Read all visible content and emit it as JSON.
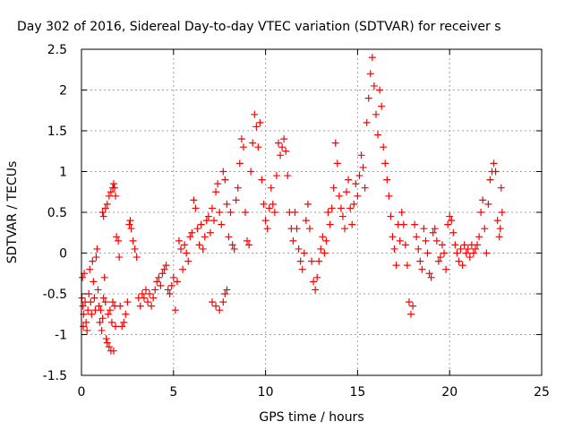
{
  "chart_data": {
    "type": "scatter",
    "title": "Day 302 of 2016, Sidereal Day-to-day VTEC variation (SDTVAR) for receiver s",
    "xlabel": "GPS time / hours",
    "ylabel": "SDTVAR / TECUs",
    "xlim": [
      0,
      25
    ],
    "ylim": [
      -1.5,
      2.5
    ],
    "xticks": [
      "0",
      "5",
      "10",
      "15",
      "20",
      "25"
    ],
    "yticks": [
      "-1.5",
      "-1",
      "-0.5",
      "0",
      "0.5",
      "1",
      "1.5",
      "2",
      "2.5"
    ],
    "grid": true,
    "marker": "+",
    "color": "#ff0000",
    "series": [
      {
        "points": [
          [
            0.02,
            -0.55
          ],
          [
            0.05,
            -0.3
          ],
          [
            0.08,
            -0.65
          ],
          [
            0.1,
            -0.9
          ],
          [
            0.12,
            -0.75
          ],
          [
            0.15,
            -0.25
          ],
          [
            0.2,
            -0.6
          ],
          [
            0.25,
            -0.85
          ],
          [
            0.3,
            -0.95
          ],
          [
            0.35,
            -0.7
          ],
          [
            0.4,
            -0.5
          ],
          [
            0.45,
            -0.2
          ],
          [
            0.5,
            -0.6
          ],
          [
            0.55,
            -0.75
          ],
          [
            0.6,
            -0.1
          ],
          [
            0.65,
            -0.35
          ],
          [
            0.7,
            -0.55
          ],
          [
            0.75,
            -0.7
          ],
          [
            0.8,
            -0.05
          ],
          [
            0.85,
            0.05
          ],
          [
            0.9,
            -0.45
          ],
          [
            0.95,
            -0.65
          ],
          [
            1.0,
            -0.85
          ],
          [
            1.05,
            -0.7
          ],
          [
            1.1,
            -0.95
          ],
          [
            1.15,
            -0.8
          ],
          [
            1.2,
            -0.55
          ],
          [
            1.25,
            -0.3
          ],
          [
            1.3,
            -0.6
          ],
          [
            1.35,
            -1.05
          ],
          [
            1.4,
            -1.1
          ],
          [
            1.45,
            -0.75
          ],
          [
            1.5,
            -1.15
          ],
          [
            1.55,
            -0.7
          ],
          [
            1.6,
            -1.2
          ],
          [
            1.65,
            -0.85
          ],
          [
            1.7,
            -0.6
          ],
          [
            1.75,
            -1.2
          ],
          [
            1.8,
            -0.65
          ],
          [
            1.85,
            -0.9
          ],
          [
            1.15,
            0.5
          ],
          [
            1.2,
            0.45
          ],
          [
            1.3,
            0.55
          ],
          [
            1.4,
            0.6
          ],
          [
            1.5,
            0.7
          ],
          [
            1.6,
            0.75
          ],
          [
            1.7,
            0.8
          ],
          [
            1.75,
            0.85
          ],
          [
            1.8,
            0.8
          ],
          [
            1.85,
            0.7
          ],
          [
            1.9,
            0.2
          ],
          [
            2.0,
            0.15
          ],
          [
            2.05,
            -0.05
          ],
          [
            2.1,
            -0.65
          ],
          [
            2.2,
            -0.9
          ],
          [
            2.3,
            -0.85
          ],
          [
            2.4,
            -0.75
          ],
          [
            2.5,
            -0.6
          ],
          [
            2.6,
            0.35
          ],
          [
            2.65,
            0.4
          ],
          [
            2.7,
            0.3
          ],
          [
            2.8,
            0.15
          ],
          [
            2.9,
            0.05
          ],
          [
            3.0,
            -0.05
          ],
          [
            3.1,
            -0.55
          ],
          [
            3.2,
            -0.65
          ],
          [
            3.3,
            -0.5
          ],
          [
            3.4,
            -0.55
          ],
          [
            3.5,
            -0.45
          ],
          [
            3.6,
            -0.6
          ],
          [
            3.7,
            -0.5
          ],
          [
            3.8,
            -0.65
          ],
          [
            3.9,
            -0.55
          ],
          [
            4.0,
            -0.45
          ],
          [
            4.1,
            -0.35
          ],
          [
            4.2,
            -0.3
          ],
          [
            4.3,
            -0.4
          ],
          [
            4.4,
            -0.25
          ],
          [
            4.5,
            -0.2
          ],
          [
            4.6,
            -0.15
          ],
          [
            4.7,
            -0.45
          ],
          [
            4.8,
            -0.5
          ],
          [
            4.9,
            -0.4
          ],
          [
            5.0,
            -0.3
          ],
          [
            5.1,
            -0.7
          ],
          [
            5.2,
            -0.35
          ],
          [
            5.3,
            0.15
          ],
          [
            5.4,
            0.05
          ],
          [
            5.5,
            -0.2
          ],
          [
            5.6,
            0.1
          ],
          [
            5.7,
            0.0
          ],
          [
            5.8,
            -0.1
          ],
          [
            5.9,
            0.2
          ],
          [
            6.0,
            0.25
          ],
          [
            6.1,
            0.65
          ],
          [
            6.2,
            0.55
          ],
          [
            6.3,
            0.3
          ],
          [
            6.4,
            0.1
          ],
          [
            6.5,
            0.35
          ],
          [
            6.6,
            0.05
          ],
          [
            6.7,
            0.2
          ],
          [
            6.8,
            0.4
          ],
          [
            6.9,
            0.45
          ],
          [
            7.0,
            0.25
          ],
          [
            7.1,
            0.55
          ],
          [
            7.2,
            0.4
          ],
          [
            7.3,
            0.75
          ],
          [
            7.4,
            0.85
          ],
          [
            7.5,
            0.5
          ],
          [
            7.6,
            0.35
          ],
          [
            7.7,
            1.0
          ],
          [
            7.8,
            0.9
          ],
          [
            7.9,
            0.6
          ],
          [
            8.0,
            0.2
          ],
          [
            7.1,
            -0.6
          ],
          [
            7.3,
            -0.65
          ],
          [
            7.5,
            -0.7
          ],
          [
            7.7,
            -0.6
          ],
          [
            7.8,
            -0.5
          ],
          [
            7.9,
            -0.45
          ],
          [
            8.1,
            0.5
          ],
          [
            8.2,
            0.1
          ],
          [
            8.3,
            0.05
          ],
          [
            8.4,
            0.65
          ],
          [
            8.5,
            0.8
          ],
          [
            8.6,
            1.1
          ],
          [
            8.7,
            1.4
          ],
          [
            8.8,
            1.3
          ],
          [
            8.9,
            0.5
          ],
          [
            9.0,
            0.15
          ],
          [
            9.1,
            0.1
          ],
          [
            9.2,
            1.0
          ],
          [
            9.3,
            1.35
          ],
          [
            9.4,
            1.7
          ],
          [
            9.5,
            1.55
          ],
          [
            9.6,
            1.3
          ],
          [
            9.7,
            1.6
          ],
          [
            9.8,
            0.9
          ],
          [
            9.9,
            0.6
          ],
          [
            10.0,
            0.4
          ],
          [
            10.1,
            0.3
          ],
          [
            10.2,
            0.55
          ],
          [
            10.3,
            0.8
          ],
          [
            10.4,
            0.6
          ],
          [
            10.5,
            0.5
          ],
          [
            10.6,
            0.95
          ],
          [
            10.7,
            1.35
          ],
          [
            10.8,
            1.2
          ],
          [
            10.9,
            1.3
          ],
          [
            11.0,
            1.4
          ],
          [
            11.1,
            1.25
          ],
          [
            11.2,
            0.95
          ],
          [
            11.3,
            0.5
          ],
          [
            11.4,
            0.3
          ],
          [
            11.5,
            0.15
          ],
          [
            11.6,
            0.5
          ],
          [
            11.7,
            0.3
          ],
          [
            11.8,
            0.05
          ],
          [
            11.9,
            -0.1
          ],
          [
            12.0,
            -0.2
          ],
          [
            12.1,
            0.0
          ],
          [
            12.2,
            0.4
          ],
          [
            12.3,
            0.6
          ],
          [
            12.4,
            0.3
          ],
          [
            12.5,
            -0.1
          ],
          [
            12.6,
            -0.35
          ],
          [
            12.7,
            -0.45
          ],
          [
            12.8,
            -0.3
          ],
          [
            12.9,
            -0.1
          ],
          [
            13.0,
            0.05
          ],
          [
            13.1,
            0.2
          ],
          [
            13.2,
            0.0
          ],
          [
            13.3,
            0.15
          ],
          [
            13.4,
            0.5
          ],
          [
            13.5,
            0.35
          ],
          [
            13.6,
            0.55
          ],
          [
            13.7,
            0.8
          ],
          [
            13.8,
            1.35
          ],
          [
            13.9,
            1.1
          ],
          [
            14.0,
            0.7
          ],
          [
            14.1,
            0.55
          ],
          [
            14.2,
            0.45
          ],
          [
            14.3,
            0.3
          ],
          [
            14.4,
            0.75
          ],
          [
            14.5,
            0.9
          ],
          [
            14.6,
            0.55
          ],
          [
            14.7,
            0.35
          ],
          [
            14.8,
            0.6
          ],
          [
            14.9,
            0.85
          ],
          [
            15.0,
            0.7
          ],
          [
            15.1,
            0.95
          ],
          [
            15.2,
            1.2
          ],
          [
            15.3,
            1.05
          ],
          [
            15.4,
            0.8
          ],
          [
            15.5,
            1.6
          ],
          [
            15.6,
            1.9
          ],
          [
            15.7,
            2.2
          ],
          [
            15.8,
            2.4
          ],
          [
            15.9,
            2.05
          ],
          [
            16.0,
            1.7
          ],
          [
            16.1,
            1.45
          ],
          [
            16.2,
            2.0
          ],
          [
            16.3,
            1.8
          ],
          [
            16.4,
            1.3
          ],
          [
            16.5,
            1.1
          ],
          [
            16.6,
            0.9
          ],
          [
            16.7,
            0.7
          ],
          [
            16.8,
            0.45
          ],
          [
            16.9,
            0.2
          ],
          [
            17.0,
            0.05
          ],
          [
            17.1,
            -0.15
          ],
          [
            17.2,
            0.35
          ],
          [
            17.3,
            0.15
          ],
          [
            17.4,
            0.5
          ],
          [
            17.5,
            0.35
          ],
          [
            17.6,
            0.1
          ],
          [
            17.7,
            -0.15
          ],
          [
            17.8,
            -0.6
          ],
          [
            17.9,
            -0.75
          ],
          [
            18.0,
            -0.65
          ],
          [
            18.1,
            0.35
          ],
          [
            18.2,
            0.2
          ],
          [
            18.3,
            0.05
          ],
          [
            18.4,
            -0.1
          ],
          [
            18.5,
            -0.2
          ],
          [
            18.6,
            0.3
          ],
          [
            18.7,
            0.15
          ],
          [
            18.8,
            0.0
          ],
          [
            18.9,
            -0.25
          ],
          [
            19.0,
            -0.3
          ],
          [
            19.1,
            0.25
          ],
          [
            19.2,
            0.3
          ],
          [
            19.3,
            0.15
          ],
          [
            19.4,
            -0.1
          ],
          [
            19.5,
            -0.05
          ],
          [
            19.6,
            0.1
          ],
          [
            19.7,
            0.0
          ],
          [
            19.8,
            -0.2
          ],
          [
            19.9,
            0.35
          ],
          [
            20.0,
            0.45
          ],
          [
            20.1,
            0.4
          ],
          [
            20.2,
            0.25
          ],
          [
            20.3,
            0.1
          ],
          [
            20.4,
            0.0
          ],
          [
            20.5,
            -0.1
          ],
          [
            20.6,
            0.05
          ],
          [
            20.7,
            -0.15
          ],
          [
            20.8,
            0.1
          ],
          [
            20.9,
            0.0
          ],
          [
            21.0,
            0.05
          ],
          [
            21.1,
            -0.05
          ],
          [
            21.2,
            0.1
          ],
          [
            21.3,
            0.0
          ],
          [
            21.4,
            0.05
          ],
          [
            21.5,
            0.1
          ],
          [
            21.6,
            0.2
          ],
          [
            21.7,
            0.5
          ],
          [
            21.8,
            0.65
          ],
          [
            21.9,
            0.3
          ],
          [
            22.0,
            0.0
          ],
          [
            22.1,
            0.6
          ],
          [
            22.2,
            0.9
          ],
          [
            22.3,
            1.0
          ],
          [
            22.4,
            1.1
          ],
          [
            22.5,
            1.0
          ],
          [
            22.6,
            0.4
          ],
          [
            22.7,
            0.2
          ],
          [
            22.75,
            0.3
          ],
          [
            22.8,
            0.8
          ],
          [
            22.85,
            0.5
          ]
        ]
      }
    ]
  }
}
